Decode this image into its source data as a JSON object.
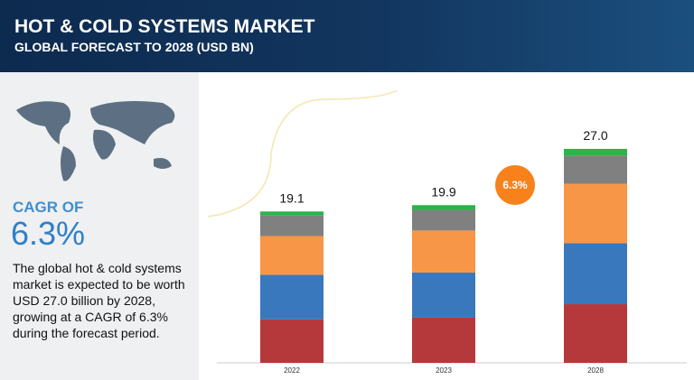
{
  "header": {
    "title": "HOT & COLD SYSTEMS MARKET",
    "subtitle": "GLOBAL FORECAST TO 2028 (USD BN)"
  },
  "sidebar": {
    "cagr_label": "CAGR OF",
    "cagr_value": "6.3%",
    "description": "The global hot & cold systems market is expected to be worth USD 27.0 billion by 2028, growing at a CAGR of 6.3% during the forecast period."
  },
  "chart_data": {
    "type": "stacked_bar",
    "categories": [
      "2022",
      "2023",
      "2028"
    ],
    "series": [
      {
        "color": "#b5393a",
        "values": [
          5.5,
          5.7,
          7.4
        ]
      },
      {
        "color": "#3a78be",
        "values": [
          5.6,
          5.7,
          7.7
        ]
      },
      {
        "color": "#f79646",
        "values": [
          4.9,
          5.3,
          7.5
        ]
      },
      {
        "color": "#808080",
        "values": [
          2.6,
          2.6,
          3.5
        ]
      },
      {
        "color": "#2db34a",
        "values": [
          0.5,
          0.6,
          0.9
        ]
      }
    ],
    "totals": [
      19.1,
      19.9,
      27.0
    ],
    "totals_labels": [
      "19.1",
      "19.9",
      "27.0"
    ],
    "annotation": "6.3%",
    "annotation_color": "#f7821b"
  }
}
